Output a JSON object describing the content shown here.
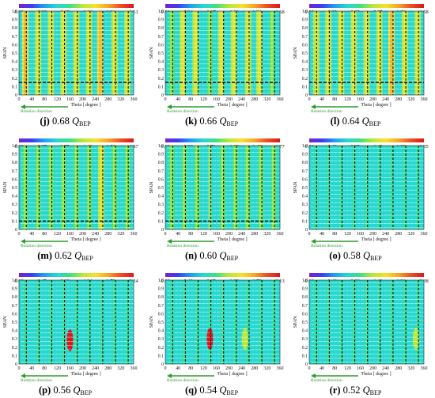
{
  "figure": {
    "ylabel": "SPAN",
    "xlabel": "Theta [ degree ]",
    "arrow_label": "Rotation direction",
    "x_ticks": [
      "0",
      "40",
      "80",
      "120",
      "160",
      "200",
      "240",
      "280",
      "320",
      "360"
    ],
    "y_ticks": [
      "0",
      "0.1",
      "0.2",
      "0.3",
      "0.4",
      "0.5",
      "0.6",
      "0.7",
      "0.8",
      "0.9",
      "1.0"
    ],
    "colormap": [
      "#7a1fd0",
      "#3b3ef0",
      "#1fa0f0",
      "#26d8d0",
      "#3ee080",
      "#b8e838",
      "#f4e22a",
      "#f7a526",
      "#ef4b22",
      "#d9181c"
    ],
    "arrow_color": "#2e9c2e"
  },
  "chart_data": [
    {
      "type": "heatmap",
      "caption_letter": "(j)",
      "caption_value": "0.68",
      "caption_q": "Q",
      "caption_sub": "BEP",
      "colorbar_ticks": [
        "0.00",
        "0.30",
        "0.60",
        "0.91",
        "1.21",
        "1.51"
      ],
      "colorbar_range": [
        0,
        1.51
      ],
      "xlim": [
        0,
        360
      ],
      "ylim": [
        0,
        1.0
      ],
      "dashed_line_span": 0.15,
      "bands": [
        {
          "theta": 20,
          "w": 9,
          "v": 0.62
        },
        {
          "theta": 60,
          "w": 9,
          "v": 0.55
        },
        {
          "theta": 100,
          "w": 9,
          "v": 0.58
        },
        {
          "theta": 140,
          "w": 9,
          "v": 0.52
        },
        {
          "theta": 180,
          "w": 9,
          "v": 0.6
        },
        {
          "theta": 220,
          "w": 9,
          "v": 0.56
        },
        {
          "theta": 255,
          "w": 9,
          "v": 0.64
        },
        {
          "theta": 300,
          "w": 9,
          "v": 0.58
        },
        {
          "theta": 340,
          "w": 9,
          "v": 0.5
        }
      ],
      "hotspots": []
    },
    {
      "type": "heatmap",
      "caption_letter": "(k)",
      "caption_value": "0.66",
      "caption_q": "Q",
      "caption_sub": "BEP",
      "colorbar_ticks": [
        "0.01",
        "0.34",
        "0.67",
        "1.01",
        "1.34",
        "1.68"
      ],
      "colorbar_range": [
        0.01,
        1.68
      ],
      "xlim": [
        0,
        360
      ],
      "ylim": [
        0,
        1.0
      ],
      "dashed_line_span": 0.15,
      "bands": [
        {
          "theta": 20,
          "w": 9,
          "v": 0.48
        },
        {
          "theta": 55,
          "w": 9,
          "v": 0.52
        },
        {
          "theta": 95,
          "w": 9,
          "v": 0.5
        },
        {
          "theta": 140,
          "w": 9,
          "v": 0.46
        },
        {
          "theta": 175,
          "w": 9,
          "v": 0.55
        },
        {
          "theta": 215,
          "w": 9,
          "v": 0.5
        },
        {
          "theta": 260,
          "w": 9,
          "v": 0.6
        },
        {
          "theta": 295,
          "w": 9,
          "v": 0.52
        },
        {
          "theta": 335,
          "w": 9,
          "v": 0.48
        }
      ],
      "hotspots": []
    },
    {
      "type": "heatmap",
      "caption_letter": "(l)",
      "caption_value": "0.64",
      "caption_q": "Q",
      "caption_sub": "BEP",
      "colorbar_ticks": [
        "0.00",
        "0.32",
        "0.63",
        "0.95",
        "1.26",
        "1.58"
      ],
      "colorbar_range": [
        0,
        1.58
      ],
      "xlim": [
        0,
        360
      ],
      "ylim": [
        0,
        1.0
      ],
      "dashed_line_span": 0.15,
      "bands": [
        {
          "theta": 22,
          "w": 9,
          "v": 0.6
        },
        {
          "theta": 60,
          "w": 9,
          "v": 0.55
        },
        {
          "theta": 100,
          "w": 9,
          "v": 0.58
        },
        {
          "theta": 140,
          "w": 9,
          "v": 0.54
        },
        {
          "theta": 180,
          "w": 9,
          "v": 0.6
        },
        {
          "theta": 220,
          "w": 9,
          "v": 0.55
        },
        {
          "theta": 258,
          "w": 9,
          "v": 0.66
        },
        {
          "theta": 300,
          "w": 9,
          "v": 0.58
        },
        {
          "theta": 340,
          "w": 9,
          "v": 0.52
        }
      ],
      "hotspots": []
    },
    {
      "type": "heatmap",
      "caption_letter": "(m)",
      "caption_value": "0.62",
      "caption_q": "Q",
      "caption_sub": "BEP",
      "colorbar_ticks": [
        "0.00",
        "0.37",
        "0.75",
        "1.12",
        "1.50",
        "1.87"
      ],
      "colorbar_range": [
        0,
        1.87
      ],
      "xlim": [
        0,
        360
      ],
      "ylim": [
        0,
        1.0
      ],
      "dashed_line_span": 0.1,
      "bands": [
        {
          "theta": 20,
          "w": 9,
          "v": 0.45
        },
        {
          "theta": 60,
          "w": 9,
          "v": 0.42
        },
        {
          "theta": 100,
          "w": 9,
          "v": 0.44
        },
        {
          "theta": 140,
          "w": 9,
          "v": 0.4
        },
        {
          "theta": 180,
          "w": 9,
          "v": 0.46
        },
        {
          "theta": 220,
          "w": 9,
          "v": 0.43
        },
        {
          "theta": 258,
          "w": 9,
          "v": 0.5
        },
        {
          "theta": 300,
          "w": 9,
          "v": 0.45
        },
        {
          "theta": 340,
          "w": 9,
          "v": 0.42
        }
      ],
      "hotspots": []
    },
    {
      "type": "heatmap",
      "caption_letter": "(n)",
      "caption_value": "0.60",
      "caption_q": "Q",
      "caption_sub": "BEP",
      "colorbar_ticks": [
        "0.00",
        "0.36",
        "0.71",
        "1.06",
        "1.42",
        "1.77"
      ],
      "colorbar_range": [
        0,
        1.77
      ],
      "xlim": [
        0,
        360
      ],
      "ylim": [
        0,
        1.0
      ],
      "dashed_line_span": 0.1,
      "bands": [
        {
          "theta": 20,
          "w": 9,
          "v": 0.42
        },
        {
          "theta": 60,
          "w": 9,
          "v": 0.4
        },
        {
          "theta": 100,
          "w": 9,
          "v": 0.44
        },
        {
          "theta": 140,
          "w": 9,
          "v": 0.38
        },
        {
          "theta": 180,
          "w": 9,
          "v": 0.45
        },
        {
          "theta": 220,
          "w": 9,
          "v": 0.4
        },
        {
          "theta": 258,
          "w": 9,
          "v": 0.48
        },
        {
          "theta": 300,
          "w": 9,
          "v": 0.42
        },
        {
          "theta": 340,
          "w": 9,
          "v": 0.4
        }
      ],
      "hotspots": []
    },
    {
      "type": "heatmap",
      "caption_letter": "(o)",
      "caption_value": "0.58",
      "caption_q": "Q",
      "caption_sub": "BEP",
      "colorbar_ticks": [
        "0.01",
        "0.48",
        "0.95",
        "1.43",
        "1.88",
        "2.35"
      ],
      "colorbar_range": [
        0.01,
        2.35
      ],
      "xlim": [
        0,
        360
      ],
      "ylim": [
        0,
        1.0
      ],
      "dashed_line_span": null,
      "bands": [
        {
          "theta": 20,
          "w": 9,
          "v": 0.32
        },
        {
          "theta": 60,
          "w": 9,
          "v": 0.3
        },
        {
          "theta": 100,
          "w": 9,
          "v": 0.34
        },
        {
          "theta": 140,
          "w": 9,
          "v": 0.3
        },
        {
          "theta": 180,
          "w": 9,
          "v": 0.33
        },
        {
          "theta": 220,
          "w": 9,
          "v": 0.3
        },
        {
          "theta": 258,
          "w": 9,
          "v": 0.36
        },
        {
          "theta": 300,
          "w": 9,
          "v": 0.32
        },
        {
          "theta": 340,
          "w": 9,
          "v": 0.3
        }
      ],
      "hotspots": []
    },
    {
      "type": "heatmap",
      "caption_letter": "(p)",
      "caption_value": "0.56",
      "caption_q": "Q",
      "caption_sub": "BEP",
      "colorbar_ticks": [
        "0.00",
        "0.45",
        "0.90",
        "1.34",
        "1.79",
        "2.24"
      ],
      "colorbar_range": [
        0,
        2.24
      ],
      "xlim": [
        0,
        360
      ],
      "ylim": [
        0,
        1.0
      ],
      "dashed_line_span": null,
      "bands": [
        {
          "theta": 20,
          "w": 9,
          "v": 0.3
        },
        {
          "theta": 60,
          "w": 9,
          "v": 0.28
        },
        {
          "theta": 100,
          "w": 9,
          "v": 0.3
        },
        {
          "theta": 140,
          "w": 9,
          "v": 0.28
        },
        {
          "theta": 180,
          "w": 9,
          "v": 0.3
        },
        {
          "theta": 220,
          "w": 9,
          "v": 0.28
        },
        {
          "theta": 258,
          "w": 9,
          "v": 0.32
        },
        {
          "theta": 300,
          "w": 9,
          "v": 0.3
        },
        {
          "theta": 340,
          "w": 9,
          "v": 0.28
        }
      ],
      "hotspots": [
        {
          "theta": 160,
          "span": 0.28,
          "v": 0.95
        }
      ]
    },
    {
      "type": "heatmap",
      "caption_letter": "(q)",
      "caption_value": "0.54",
      "caption_q": "Q",
      "caption_sub": "BEP",
      "colorbar_ticks": [
        "0.00",
        "0.43",
        "0.85",
        "1.28",
        "1.70",
        "2.13"
      ],
      "colorbar_range": [
        0,
        2.13
      ],
      "xlim": [
        0,
        360
      ],
      "ylim": [
        0,
        1.0
      ],
      "dashed_line_span": null,
      "bands": [
        {
          "theta": 20,
          "w": 9,
          "v": 0.3
        },
        {
          "theta": 60,
          "w": 9,
          "v": 0.28
        },
        {
          "theta": 100,
          "w": 9,
          "v": 0.3
        },
        {
          "theta": 140,
          "w": 9,
          "v": 0.3
        },
        {
          "theta": 180,
          "w": 9,
          "v": 0.3
        },
        {
          "theta": 220,
          "w": 9,
          "v": 0.28
        },
        {
          "theta": 258,
          "w": 9,
          "v": 0.32
        },
        {
          "theta": 300,
          "w": 9,
          "v": 0.3
        },
        {
          "theta": 340,
          "w": 9,
          "v": 0.28
        }
      ],
      "hotspots": [
        {
          "theta": 140,
          "span": 0.3,
          "v": 0.95
        },
        {
          "theta": 250,
          "span": 0.3,
          "v": 0.5
        }
      ]
    },
    {
      "type": "heatmap",
      "caption_letter": "(r)",
      "caption_value": "0.52",
      "caption_q": "Q",
      "caption_sub": "BEP",
      "colorbar_ticks": [
        "0.01",
        "0.48",
        "0.96",
        "1.43",
        "1.91",
        "2.38"
      ],
      "colorbar_range": [
        0.01,
        2.38
      ],
      "xlim": [
        0,
        360
      ],
      "ylim": [
        0,
        1.0
      ],
      "dashed_line_span": null,
      "bands": [
        {
          "theta": 20,
          "w": 9,
          "v": 0.3
        },
        {
          "theta": 60,
          "w": 9,
          "v": 0.28
        },
        {
          "theta": 100,
          "w": 9,
          "v": 0.3
        },
        {
          "theta": 140,
          "w": 9,
          "v": 0.28
        },
        {
          "theta": 180,
          "w": 9,
          "v": 0.3
        },
        {
          "theta": 220,
          "w": 9,
          "v": 0.28
        },
        {
          "theta": 258,
          "w": 9,
          "v": 0.3
        },
        {
          "theta": 300,
          "w": 9,
          "v": 0.3
        },
        {
          "theta": 340,
          "w": 9,
          "v": 0.32
        }
      ],
      "hotspots": [
        {
          "theta": 335,
          "span": 0.3,
          "v": 0.5
        }
      ]
    }
  ]
}
